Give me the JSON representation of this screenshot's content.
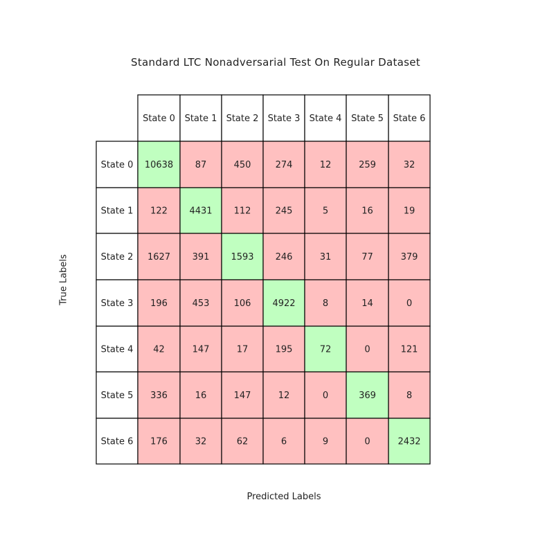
{
  "chart_data": {
    "type": "table",
    "title": "Standard LTC Nonadversarial Test On Regular Dataset",
    "xlabel": "Predicted Labels",
    "ylabel": "True Labels",
    "col_labels": [
      "State 0",
      "State 1",
      "State 2",
      "State 3",
      "State 4",
      "State 5",
      "State 6"
    ],
    "row_labels": [
      "State 0",
      "State 1",
      "State 2",
      "State 3",
      "State 4",
      "State 5",
      "State 6"
    ],
    "values": [
      [
        10638,
        87,
        450,
        274,
        12,
        259,
        32
      ],
      [
        122,
        4431,
        112,
        245,
        5,
        16,
        19
      ],
      [
        1627,
        391,
        1593,
        246,
        31,
        77,
        379
      ],
      [
        196,
        453,
        106,
        4922,
        8,
        14,
        0
      ],
      [
        42,
        147,
        17,
        195,
        72,
        0,
        121
      ],
      [
        336,
        16,
        147,
        12,
        0,
        369,
        8
      ],
      [
        176,
        32,
        62,
        6,
        9,
        0,
        2432
      ]
    ],
    "colors": {
      "correct": "#c0ffc0",
      "incorrect": "#ffc0c0",
      "header": "#ffffff",
      "border": "#000000"
    }
  }
}
